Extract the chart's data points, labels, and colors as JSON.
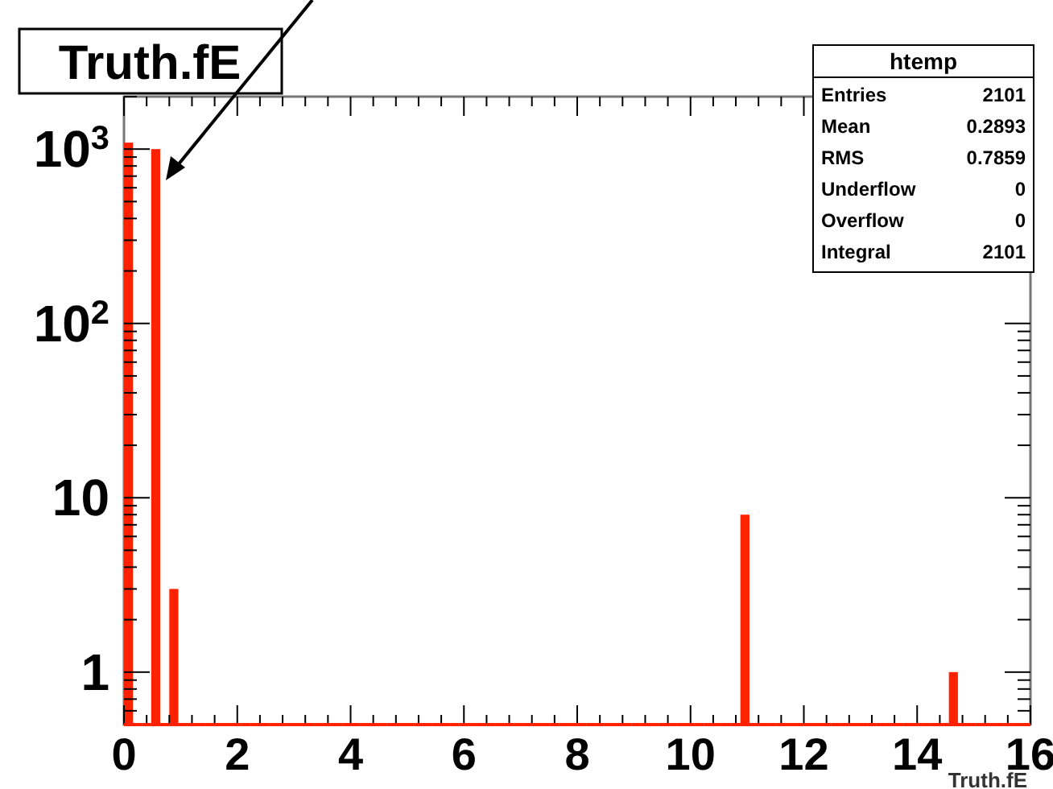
{
  "chart_data": {
    "type": "histogram",
    "title": "Truth.fE",
    "xlabel": "Truth.fE",
    "bins": [
      0,
      0.16,
      0.32,
      0.48,
      0.64,
      0.8,
      0.96,
      1.12,
      1.28,
      1.44,
      1.6,
      1.76,
      1.92,
      2.08,
      2.24,
      2.4,
      2.56,
      2.72,
      2.88,
      3.04,
      3.2,
      3.36,
      3.52,
      3.68,
      3.84,
      4,
      4.16,
      4.32,
      4.48,
      4.64,
      4.8,
      4.96,
      5.12,
      5.28,
      5.44,
      5.6,
      5.76,
      5.92,
      6.08,
      6.24,
      6.4,
      6.56,
      6.72,
      6.88,
      7.04,
      7.2,
      7.36,
      7.52,
      7.68,
      7.84,
      8,
      8.16,
      8.32,
      8.48,
      8.64,
      8.8,
      8.96,
      9.12,
      9.28,
      9.44,
      9.6,
      9.76,
      9.92,
      10.08,
      10.24,
      10.4,
      10.56,
      10.72,
      10.88,
      11.04,
      11.2,
      11.36,
      11.52,
      11.68,
      11.84,
      12,
      12.16,
      12.32,
      12.48,
      12.64,
      12.8,
      12.96,
      13.12,
      13.28,
      13.44,
      13.6,
      13.76,
      13.92,
      14.08,
      14.24,
      14.4,
      14.56,
      14.72,
      14.88,
      15.04,
      15.2,
      15.36,
      15.52,
      15.68,
      15.84,
      16
    ],
    "values": [
      1089,
      null,
      null,
      1000,
      null,
      3,
      null,
      null,
      null,
      null,
      null,
      null,
      null,
      null,
      null,
      null,
      null,
      null,
      null,
      null,
      null,
      null,
      null,
      null,
      null,
      null,
      null,
      null,
      null,
      null,
      null,
      null,
      null,
      null,
      null,
      null,
      null,
      null,
      null,
      null,
      null,
      null,
      null,
      null,
      null,
      null,
      null,
      null,
      null,
      null,
      null,
      null,
      null,
      null,
      null,
      null,
      null,
      null,
      null,
      null,
      null,
      null,
      null,
      null,
      null,
      null,
      null,
      null,
      8,
      null,
      null,
      null,
      null,
      null,
      null,
      null,
      null,
      null,
      null,
      null,
      null,
      null,
      null,
      null,
      null,
      null,
      null,
      null,
      null,
      null,
      null,
      1,
      null,
      null,
      null,
      null,
      null,
      null,
      null,
      null
    ],
    "color": "#ff2200",
    "xlim": [
      0,
      16
    ],
    "xticks": [
      0,
      2,
      4,
      6,
      8,
      10,
      12,
      14,
      16
    ],
    "ylim": [
      0.5,
      2000
    ],
    "yticks": [
      1,
      10,
      {
        "value": 100,
        "label": "10$^{2}$"
      },
      {
        "value": 1000,
        "label": "10$^{3}$"
      }
    ],
    "log": "y",
    "grid": false,
    "annotations": [
      "htemp",
      "Entries",
      "2101",
      "Mean",
      "0.2893",
      "RMS",
      "0.7859",
      "Underflow",
      "0",
      "Overflow",
      "0",
      "Integral",
      "2101"
    ]
  }
}
